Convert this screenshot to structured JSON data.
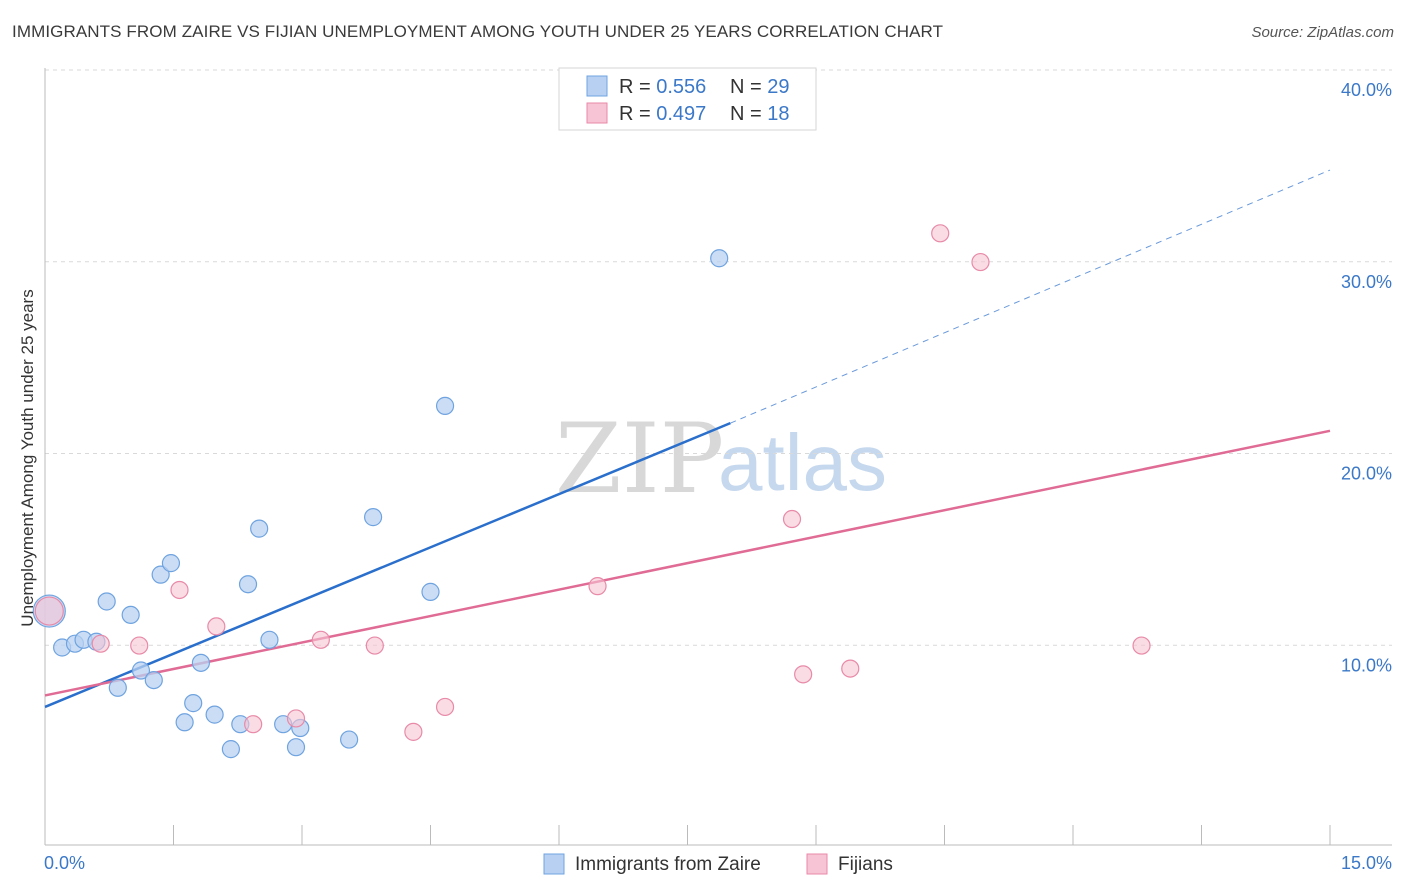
{
  "header": {
    "title": "IMMIGRANTS FROM ZAIRE VS FIJIAN UNEMPLOYMENT AMONG YOUTH UNDER 25 YEARS CORRELATION CHART",
    "source": "Source: ZipAtlas.com"
  },
  "watermark": {
    "zip": "ZIP",
    "atlas": "atlas"
  },
  "colors": {
    "blue": "#6fa3e0",
    "blue_fill": "#b8d1f2",
    "blue_line": "#2a6fcc",
    "pink": "#e88aa8",
    "pink_fill": "#f6c4d4",
    "pink_line": "#e06b94",
    "grid": "#d9d9d9",
    "tick_text": "#3b78c8"
  },
  "legend": {
    "rows": [
      {
        "r_label": "R = ",
        "r_value": "0.556",
        "n_label": "N = ",
        "n_value": "29"
      },
      {
        "r_label": "R = ",
        "r_value": "0.497",
        "n_label": "N = ",
        "n_value": "18"
      }
    ]
  },
  "chart_data": {
    "type": "scatter",
    "title": "IMMIGRANTS FROM ZAIRE VS FIJIAN UNEMPLOYMENT AMONG YOUTH UNDER 25 YEARS CORRELATION CHART",
    "xlabel": "",
    "ylabel": "Unemployment Among Youth under 25 years",
    "xlim": [
      0,
      15
    ],
    "ylim": [
      0,
      40
    ],
    "x_tick_labels": [
      "0.0%",
      "15.0%"
    ],
    "y_ticks": [
      10,
      20,
      30,
      40
    ],
    "y_tick_labels": [
      "10.0%",
      "20.0%",
      "30.0%",
      "40.0%"
    ],
    "series": [
      {
        "name": "Immigrants from Zaire",
        "r": 0.556,
        "n": 29,
        "points": [
          {
            "x": 0.05,
            "y": 12.2,
            "big": true
          },
          {
            "x": 0.2,
            "y": 10.3
          },
          {
            "x": 0.35,
            "y": 10.5
          },
          {
            "x": 0.45,
            "y": 10.7
          },
          {
            "x": 0.6,
            "y": 10.6
          },
          {
            "x": 0.72,
            "y": 12.7
          },
          {
            "x": 0.85,
            "y": 8.2
          },
          {
            "x": 1.0,
            "y": 12.0
          },
          {
            "x": 1.12,
            "y": 9.1
          },
          {
            "x": 1.27,
            "y": 8.6
          },
          {
            "x": 1.35,
            "y": 14.1
          },
          {
            "x": 1.47,
            "y": 14.7
          },
          {
            "x": 1.63,
            "y": 6.4
          },
          {
            "x": 1.73,
            "y": 7.4
          },
          {
            "x": 1.82,
            "y": 9.5
          },
          {
            "x": 1.98,
            "y": 6.8
          },
          {
            "x": 2.17,
            "y": 5.0
          },
          {
            "x": 2.28,
            "y": 6.3
          },
          {
            "x": 2.37,
            "y": 13.6
          },
          {
            "x": 2.5,
            "y": 16.5
          },
          {
            "x": 2.62,
            "y": 10.7
          },
          {
            "x": 2.78,
            "y": 6.3
          },
          {
            "x": 2.93,
            "y": 5.1
          },
          {
            "x": 2.98,
            "y": 6.1
          },
          {
            "x": 3.55,
            "y": 5.5
          },
          {
            "x": 3.83,
            "y": 17.1
          },
          {
            "x": 4.5,
            "y": 13.2
          },
          {
            "x": 4.67,
            "y": 22.9
          },
          {
            "x": 7.87,
            "y": 30.6
          }
        ],
        "trend": {
          "x0": 0,
          "y0": 7.2,
          "x1": 8.0,
          "y1": 22.0,
          "x_dash_end": 15.0,
          "y_dash_end": 35.2
        }
      },
      {
        "name": "Fijians",
        "r": 0.497,
        "n": 18,
        "points": [
          {
            "x": 0.05,
            "y": 12.2,
            "big": true
          },
          {
            "x": 0.65,
            "y": 10.5
          },
          {
            "x": 1.1,
            "y": 10.4
          },
          {
            "x": 1.57,
            "y": 13.3
          },
          {
            "x": 2.0,
            "y": 11.4
          },
          {
            "x": 2.43,
            "y": 6.3
          },
          {
            "x": 2.93,
            "y": 6.6
          },
          {
            "x": 3.22,
            "y": 10.7
          },
          {
            "x": 3.85,
            "y": 10.4
          },
          {
            "x": 4.3,
            "y": 5.9
          },
          {
            "x": 4.67,
            "y": 7.2
          },
          {
            "x": 6.45,
            "y": 13.5
          },
          {
            "x": 8.72,
            "y": 17.0
          },
          {
            "x": 8.85,
            "y": 8.9
          },
          {
            "x": 9.4,
            "y": 9.2
          },
          {
            "x": 10.45,
            "y": 31.9
          },
          {
            "x": 10.92,
            "y": 30.4
          },
          {
            "x": 12.8,
            "y": 10.4
          }
        ],
        "trend": {
          "x0": 0,
          "y0": 7.8,
          "x1": 15.0,
          "y1": 21.6
        }
      }
    ]
  },
  "bottom_legend": {
    "items": [
      {
        "label": "Immigrants from Zaire"
      },
      {
        "label": "Fijians"
      }
    ]
  }
}
